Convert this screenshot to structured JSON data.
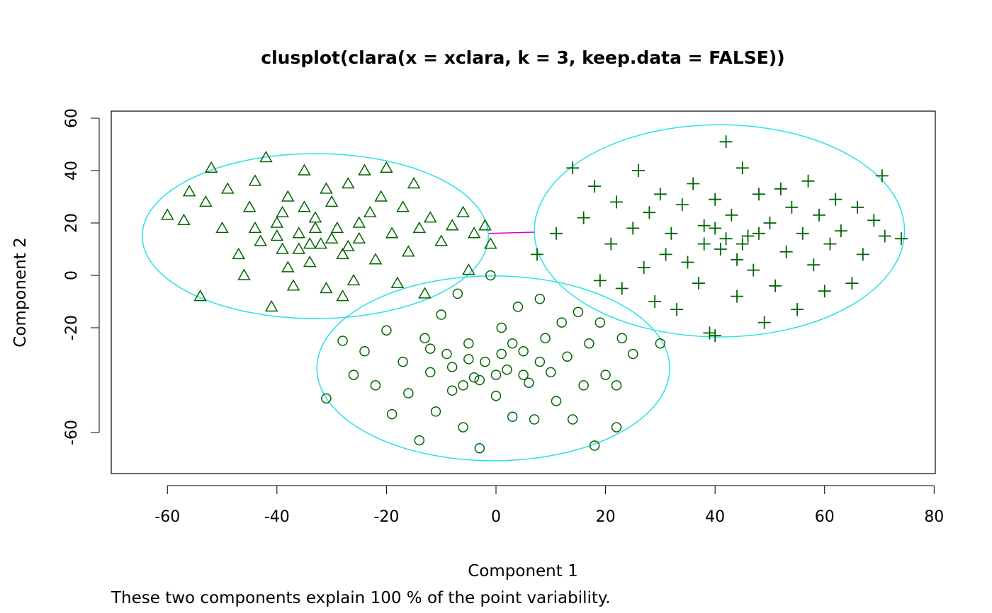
{
  "chart_data": {
    "type": "scatter",
    "title": "clusplot(clara(x = xclara, k = 3, keep.data = FALSE))",
    "xlabel": "Component 1",
    "ylabel": "Component 2",
    "subtitle": "These two components explain 100 % of the point variability.",
    "xlim": [
      -70,
      80
    ],
    "ylim": [
      -75,
      62
    ],
    "x_ticks": [
      -60,
      -40,
      -20,
      0,
      20,
      40,
      60,
      80
    ],
    "y_ticks": [
      -60,
      -20,
      0,
      20,
      40,
      60
    ],
    "grid": false,
    "colors": {
      "points": "#006400",
      "ellipses": "#2ae0e6",
      "link": "#cc00cc"
    },
    "clusters": [
      {
        "marker": "triangle",
        "ellipse": {
          "center": [
            -33,
            15
          ],
          "semi_axes": [
            31.6,
            31.5
          ]
        },
        "points": [
          [
            -60,
            23
          ],
          [
            -57,
            21
          ],
          [
            -56,
            32
          ],
          [
            -52,
            41
          ],
          [
            -53,
            28
          ],
          [
            -50,
            18
          ],
          [
            -49,
            33
          ],
          [
            -54,
            -8
          ],
          [
            -47,
            8
          ],
          [
            -45,
            26
          ],
          [
            -44,
            36
          ],
          [
            -42,
            45
          ],
          [
            -41,
            -12
          ],
          [
            -40,
            20
          ],
          [
            -39,
            10
          ],
          [
            -38,
            30
          ],
          [
            -37,
            -4
          ],
          [
            -36,
            16
          ],
          [
            -35,
            40
          ],
          [
            -34,
            5
          ],
          [
            -33,
            22
          ],
          [
            -32,
            12
          ],
          [
            -31,
            -5
          ],
          [
            -30,
            28
          ],
          [
            -29,
            18
          ],
          [
            -28,
            8
          ],
          [
            -27,
            35
          ],
          [
            -26,
            -2
          ],
          [
            -25,
            14
          ],
          [
            -24,
            40
          ],
          [
            -23,
            24
          ],
          [
            -22,
            6
          ],
          [
            -21,
            30
          ],
          [
            -20,
            41
          ],
          [
            -19,
            16
          ],
          [
            -18,
            -3
          ],
          [
            -17,
            26
          ],
          [
            -16,
            9
          ],
          [
            -15,
            35
          ],
          [
            -14,
            18
          ],
          [
            -13,
            -7
          ],
          [
            -12,
            22
          ],
          [
            -10,
            13
          ],
          [
            -8,
            19
          ],
          [
            -6,
            24
          ],
          [
            -5,
            2
          ],
          [
            -4,
            16
          ],
          [
            -2,
            19
          ],
          [
            -1,
            12
          ],
          [
            -46,
            0
          ],
          [
            -43,
            13
          ],
          [
            -38,
            3
          ],
          [
            -35,
            26
          ],
          [
            -31,
            33
          ],
          [
            -28,
            -8
          ],
          [
            -25,
            20
          ],
          [
            -36,
            10
          ],
          [
            -40,
            15
          ],
          [
            -33,
            18
          ],
          [
            -30,
            14
          ],
          [
            -27,
            11
          ],
          [
            -44,
            18
          ],
          [
            -39,
            24
          ],
          [
            -34,
            12
          ]
        ]
      },
      {
        "marker": "circle",
        "ellipse": {
          "center": [
            -0.5,
            -35.5
          ],
          "semi_axes": [
            32.2,
            35.3
          ]
        },
        "points": [
          [
            -31,
            -47
          ],
          [
            -28,
            -25
          ],
          [
            -26,
            -38
          ],
          [
            -24,
            -29
          ],
          [
            -22,
            -42
          ],
          [
            -20,
            -21
          ],
          [
            -19,
            -53
          ],
          [
            -17,
            -33
          ],
          [
            -16,
            -45
          ],
          [
            -14,
            -63
          ],
          [
            -13,
            -24
          ],
          [
            -12,
            -37
          ],
          [
            -11,
            -52
          ],
          [
            -10,
            -15
          ],
          [
            -9,
            -30
          ],
          [
            -8,
            -44
          ],
          [
            -7,
            -7
          ],
          [
            -6,
            -58
          ],
          [
            -5,
            -26
          ],
          [
            -4,
            -39
          ],
          [
            -3,
            -66
          ],
          [
            -2,
            -33
          ],
          [
            -1,
            0
          ],
          [
            0,
            -46
          ],
          [
            1,
            -20
          ],
          [
            2,
            -36
          ],
          [
            3,
            -54
          ],
          [
            4,
            -12
          ],
          [
            5,
            -29
          ],
          [
            6,
            -41
          ],
          [
            7,
            -55
          ],
          [
            8,
            -9
          ],
          [
            9,
            -24
          ],
          [
            10,
            -37
          ],
          [
            11,
            -48
          ],
          [
            12,
            -18
          ],
          [
            13,
            -31
          ],
          [
            14,
            -55
          ],
          [
            15,
            -14
          ],
          [
            16,
            -42
          ],
          [
            17,
            -26
          ],
          [
            18,
            -65
          ],
          [
            19,
            -18
          ],
          [
            20,
            -38
          ],
          [
            22,
            -58
          ],
          [
            22,
            -42
          ],
          [
            23,
            -24
          ],
          [
            25,
            -30
          ],
          [
            30,
            -26
          ],
          [
            -8,
            -35
          ],
          [
            -3,
            -40
          ],
          [
            1,
            -30
          ],
          [
            5,
            -38
          ],
          [
            -12,
            -28
          ],
          [
            8,
            -33
          ],
          [
            -5,
            -32
          ],
          [
            0,
            -38
          ],
          [
            3,
            -26
          ],
          [
            -6,
            -42
          ]
        ]
      },
      {
        "marker": "plus",
        "ellipse": {
          "center": [
            40.8,
            17
          ],
          "semi_axes": [
            33.8,
            40.5
          ]
        },
        "points": [
          [
            7.5,
            8
          ],
          [
            11,
            16
          ],
          [
            14,
            41
          ],
          [
            16,
            22
          ],
          [
            18,
            34
          ],
          [
            19,
            -2
          ],
          [
            21,
            12
          ],
          [
            22,
            28
          ],
          [
            23,
            -5
          ],
          [
            25,
            18
          ],
          [
            26,
            40
          ],
          [
            27,
            3
          ],
          [
            28,
            24
          ],
          [
            29,
            -10
          ],
          [
            30,
            31
          ],
          [
            31,
            8
          ],
          [
            32,
            16
          ],
          [
            33,
            -13
          ],
          [
            34,
            27
          ],
          [
            35,
            5
          ],
          [
            36,
            35
          ],
          [
            37,
            -3
          ],
          [
            38,
            19
          ],
          [
            39,
            -22
          ],
          [
            40,
            -23
          ],
          [
            40,
            29
          ],
          [
            41,
            10
          ],
          [
            42,
            51
          ],
          [
            43,
            23
          ],
          [
            44,
            -8
          ],
          [
            45,
            41
          ],
          [
            46,
            15
          ],
          [
            47,
            2
          ],
          [
            48,
            31
          ],
          [
            49,
            -18
          ],
          [
            50,
            20
          ],
          [
            51,
            -4
          ],
          [
            52,
            33
          ],
          [
            53,
            9
          ],
          [
            54,
            26
          ],
          [
            55,
            -13
          ],
          [
            56,
            16
          ],
          [
            57,
            36
          ],
          [
            58,
            4
          ],
          [
            59,
            23
          ],
          [
            60,
            -6
          ],
          [
            61,
            12
          ],
          [
            62,
            29
          ],
          [
            63,
            17
          ],
          [
            65,
            -3
          ],
          [
            66,
            26
          ],
          [
            67,
            8
          ],
          [
            69,
            21
          ],
          [
            70.5,
            38
          ],
          [
            71,
            15
          ],
          [
            74,
            14
          ],
          [
            42,
            14
          ],
          [
            45,
            12
          ],
          [
            38,
            12
          ],
          [
            48,
            16
          ],
          [
            40,
            18
          ],
          [
            44,
            6
          ]
        ]
      }
    ],
    "link_line": {
      "from": [
        -1.3,
        16
      ],
      "to": [
        7,
        16.5
      ]
    }
  }
}
